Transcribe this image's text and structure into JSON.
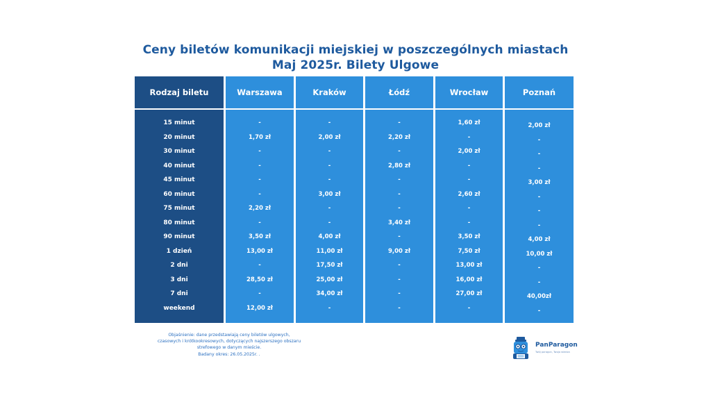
{
  "title": {
    "line1": "Ceny biletów komunikacji miejskiej w poszczególnych miastach",
    "line2": "Maj 2025r. Bilety Ulgowe"
  },
  "table": {
    "first_header": "Rodzaj biletu",
    "headers": [
      "Warszawa",
      "Kraków",
      "Łódź",
      "Wrocław",
      "Poznań"
    ],
    "rows": [
      {
        "label": "15 minut",
        "values": [
          "-",
          "-",
          "-",
          "1,60 zł",
          "2,00 zł"
        ]
      },
      {
        "label": "20 minut",
        "values": [
          "1,70 zł",
          "2,00 zł",
          "2,20 zł",
          "-",
          "-"
        ]
      },
      {
        "label": "30 minut",
        "values": [
          "-",
          "-",
          "-",
          "2,00 zł",
          "-"
        ]
      },
      {
        "label": "40 minut",
        "values": [
          "-",
          "-",
          "2,80 zł",
          "-",
          "-"
        ]
      },
      {
        "label": "45 minut",
        "values": [
          "-",
          "-",
          "-",
          "-",
          "3,00 zł"
        ]
      },
      {
        "label": "60 minut",
        "values": [
          "-",
          "3,00 zł",
          "-",
          "2,60 zł",
          "-"
        ]
      },
      {
        "label": "75 minut",
        "values": [
          "2,20 zł",
          "-",
          "-",
          "-",
          "-"
        ]
      },
      {
        "label": "80 minut",
        "values": [
          "-",
          "-",
          "3,40 zł",
          "-",
          "-"
        ]
      },
      {
        "label": "90 minut",
        "values": [
          "3,50 zł",
          "4,00 zł",
          "-",
          "3,50 zł",
          "4,00 zł"
        ]
      },
      {
        "label": "1 dzień",
        "values": [
          "13,00 zł",
          "11,00 zł",
          "9,00 zł",
          "7,50 zł",
          "10,00 zł"
        ]
      },
      {
        "label": "2 dni",
        "values": [
          "-",
          "17,50 zł",
          "-",
          "13,00 zł",
          "-"
        ]
      },
      {
        "label": "3 dni",
        "values": [
          "28,50 zł",
          "25,00 zł",
          "-",
          "16,00 zł",
          "-"
        ]
      },
      {
        "label": "7 dni",
        "values": [
          "-",
          "34,00 zł",
          "-",
          "27,00 zł",
          "40,00zł"
        ]
      },
      {
        "label": "weekend",
        "values": [
          "12,00 zł",
          "-",
          "-",
          "-",
          "-"
        ]
      }
    ]
  },
  "note": {
    "lines": [
      "Objaśnienie: dane przedstawiają ceny biletów ulgowych,",
      "czasowych i krótkookresowych, dotyczących najszerszego obszaru",
      "strefowego w danym mieście.",
      "Badany okres: 26.05.2025r. ."
    ]
  },
  "logo": {
    "name": "PanParagon",
    "tagline": "Twój paragon, Twoja wiedza",
    "colors": {
      "brand": "#1e5a9e",
      "accent": "#2e8fdc"
    }
  },
  "colors": {
    "title": "#1e5a9e",
    "first_column": "#1d4e85",
    "city_columns": "#2e8fdc",
    "note": "#2a6fc0"
  }
}
